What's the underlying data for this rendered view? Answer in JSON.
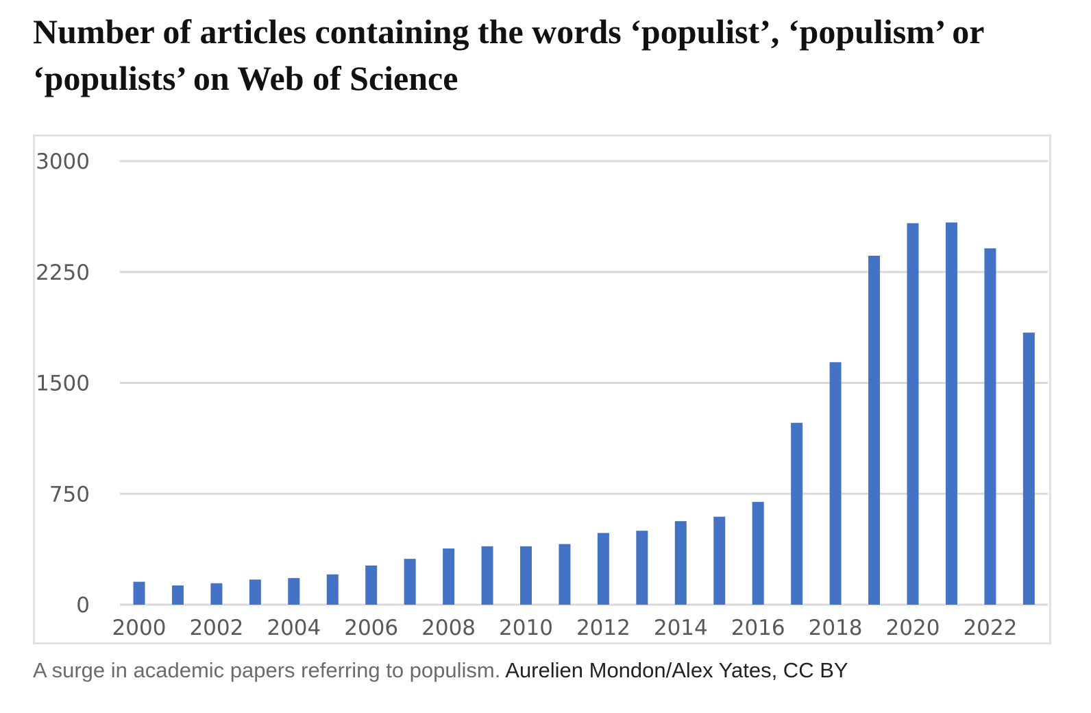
{
  "header": {
    "title": "Number of articles containing the words ‘populist’, ‘populism’ or ‘populists’ on Web of Science"
  },
  "caption": {
    "text": "A surge in academic papers referring to populism.",
    "credit": "Aurelien Mondon/Alex Yates, CC BY"
  },
  "colors": {
    "bar": "#4472C4",
    "grid": "#d9d9d9",
    "axis_text": "#595959"
  },
  "chart_data": {
    "type": "bar",
    "title": "",
    "xlabel": "",
    "ylabel": "",
    "categories": [
      "2000",
      "2001",
      "2002",
      "2003",
      "2004",
      "2005",
      "2006",
      "2007",
      "2008",
      "2009",
      "2010",
      "2011",
      "2012",
      "2013",
      "2014",
      "2015",
      "2016",
      "2017",
      "2018",
      "2019",
      "2020",
      "2021",
      "2022",
      "2023"
    ],
    "x_tick_labels": [
      "2000",
      "2002",
      "2004",
      "2006",
      "2008",
      "2010",
      "2012",
      "2014",
      "2016",
      "2018",
      "2020",
      "2022"
    ],
    "values": [
      155,
      130,
      145,
      170,
      180,
      205,
      265,
      310,
      380,
      395,
      395,
      410,
      485,
      500,
      565,
      595,
      695,
      1230,
      1640,
      2360,
      2580,
      2585,
      2410,
      1840
    ],
    "yticks": [
      0,
      750,
      1500,
      2250,
      3000
    ],
    "ylim": [
      0,
      3000
    ],
    "grid": true,
    "legend": "none"
  }
}
